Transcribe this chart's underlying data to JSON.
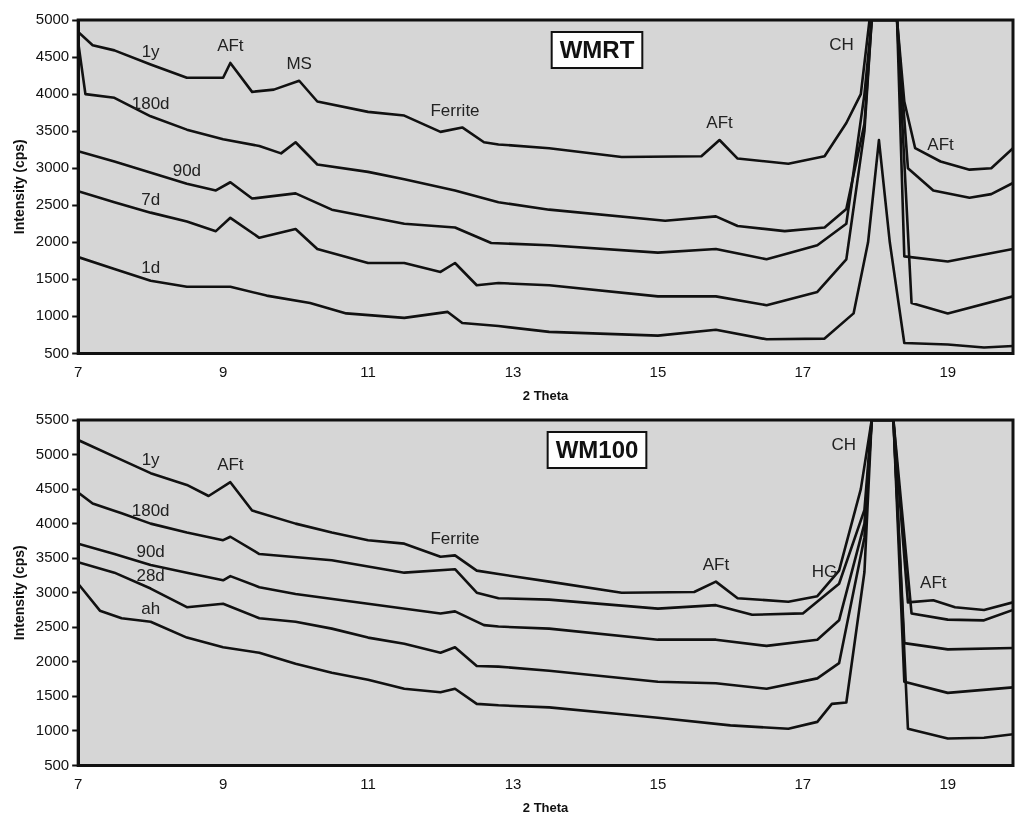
{
  "chart_data": [
    {
      "type": "line",
      "title": "WMRT",
      "xlabel": "2 Theta",
      "ylabel": "Intensity (cps)",
      "xlim": [
        7,
        19.9
      ],
      "xticks": [
        7,
        9,
        11,
        13,
        15,
        17,
        19
      ],
      "ylim": [
        500,
        5000
      ],
      "yticks": [
        500,
        1000,
        1500,
        2000,
        2500,
        3000,
        3500,
        4000,
        4500,
        5000
      ],
      "series": [
        {
          "name": "1y",
          "color": "#111111",
          "x": [
            7,
            7.2,
            7.5,
            8,
            8.5,
            9,
            9.1,
            9.4,
            9.7,
            10.05,
            10.3,
            11,
            11.5,
            12,
            12.3,
            12.6,
            12.8,
            13.5,
            14.5,
            15.6,
            15.85,
            16.1,
            16.8,
            17.3,
            17.6,
            17.8,
            17.92,
            18.3,
            18.4,
            18.55,
            18.9,
            19.3,
            19.6,
            19.9
          ],
          "values": [
            4840,
            4660,
            4590,
            4400,
            4220,
            4220,
            4420,
            4030,
            4060,
            4180,
            3900,
            3760,
            3710,
            3490,
            3550,
            3350,
            3320,
            3270,
            3150,
            3160,
            3380,
            3130,
            3060,
            3160,
            3610,
            4000,
            5000,
            5000,
            3900,
            3270,
            3090,
            2980,
            3000,
            3270
          ]
        },
        {
          "name": "180d",
          "color": "#111111",
          "x": [
            7,
            7.1,
            7.5,
            8,
            8.5,
            9,
            9.5,
            9.8,
            10,
            10.3,
            11,
            11.5,
            12.2,
            12.8,
            13.5,
            15.1,
            15.8,
            16.1,
            16.75,
            17.3,
            17.6,
            17.85,
            17.95,
            18.3,
            18.45,
            18.8,
            19.3,
            19.6,
            19.9
          ],
          "values": [
            4700,
            4000,
            3950,
            3700,
            3520,
            3390,
            3300,
            3200,
            3350,
            3050,
            2950,
            2850,
            2700,
            2540,
            2440,
            2290,
            2350,
            2220,
            2150,
            2200,
            2450,
            3600,
            5000,
            5000,
            3000,
            2700,
            2600,
            2650,
            2800
          ]
        },
        {
          "name": "90d",
          "color": "#111111",
          "x": [
            7,
            7.5,
            8.5,
            8.9,
            9.1,
            9.4,
            10,
            10.5,
            11.5,
            12.2,
            12.7,
            13.5,
            15,
            15.8,
            16.5,
            17.2,
            17.6,
            17.85,
            17.95,
            18.3,
            18.4,
            19,
            19.9
          ],
          "values": [
            3230,
            3090,
            2790,
            2700,
            2810,
            2590,
            2660,
            2440,
            2250,
            2200,
            1990,
            1960,
            1860,
            1910,
            1770,
            1960,
            2250,
            4000,
            5000,
            5000,
            1810,
            1740,
            1910
          ]
        },
        {
          "name": "7d",
          "color": "#111111",
          "x": [
            7,
            7.5,
            8,
            8.5,
            8.9,
            9.1,
            9.5,
            10,
            10.3,
            11,
            11.5,
            12,
            12.2,
            12.5,
            12.8,
            13.5,
            15,
            15.8,
            16.5,
            17.2,
            17.6,
            17.85,
            17.95,
            18.3,
            18.5,
            19,
            19.9
          ],
          "values": [
            2690,
            2540,
            2400,
            2280,
            2150,
            2330,
            2060,
            2180,
            1910,
            1720,
            1720,
            1600,
            1720,
            1420,
            1450,
            1420,
            1270,
            1270,
            1150,
            1330,
            1770,
            3500,
            5000,
            5000,
            1180,
            1040,
            1270
          ]
        },
        {
          "name": "1d",
          "color": "#111111",
          "x": [
            7,
            7.5,
            8,
            8.5,
            9.1,
            9.6,
            10.2,
            10.7,
            11.5,
            12.1,
            12.3,
            12.8,
            13.5,
            15,
            15.8,
            16.5,
            17.3,
            17.7,
            17.9,
            18.05,
            18.2,
            18.4,
            19,
            19.5,
            19.9
          ],
          "values": [
            1800,
            1640,
            1480,
            1400,
            1400,
            1280,
            1180,
            1040,
            980,
            1060,
            910,
            870,
            790,
            740,
            820,
            690,
            700,
            1040,
            2000,
            3380,
            2000,
            640,
            620,
            580,
            600
          ]
        }
      ],
      "annotations": [
        {
          "text": "AFt",
          "x": 9.1,
          "y": 4420
        },
        {
          "text": "MS",
          "x": 10.05,
          "y": 4180
        },
        {
          "text": "Ferrite",
          "x": 12.2,
          "y": 3550
        },
        {
          "text": "AFt",
          "x": 15.85,
          "y": 3380
        },
        {
          "text": "CH",
          "x": 17.92,
          "y": 5000
        },
        {
          "text": "AFt",
          "x": 18.9,
          "y": 3090
        }
      ]
    },
    {
      "type": "line",
      "title": "WM100",
      "xlabel": "2 Theta",
      "ylabel": "Intensity (cps)",
      "xlim": [
        7,
        19.9
      ],
      "xticks": [
        7,
        9,
        11,
        13,
        15,
        17,
        19
      ],
      "ylim": [
        500,
        5500
      ],
      "yticks": [
        500,
        1000,
        1500,
        2000,
        2500,
        3000,
        3500,
        4000,
        4500,
        5000,
        5500
      ],
      "series": [
        {
          "name": "1y",
          "color": "#111111",
          "x": [
            7,
            7.5,
            8,
            8.5,
            8.8,
            9.1,
            9.4,
            10,
            10.5,
            11,
            11.5,
            12,
            12.2,
            12.5,
            12.8,
            13.5,
            14.5,
            15.5,
            15.8,
            16.1,
            16.8,
            17.2,
            17.5,
            17.8,
            17.95,
            18.25,
            18.45,
            18.8,
            19.1,
            19.5,
            19.9
          ],
          "values": [
            5210,
            4970,
            4730,
            4560,
            4400,
            4600,
            4190,
            4000,
            3870,
            3760,
            3710,
            3520,
            3540,
            3320,
            3270,
            3160,
            3000,
            3010,
            3160,
            2920,
            2870,
            2950,
            3320,
            4500,
            5500,
            5500,
            2860,
            2890,
            2790,
            2750,
            2860
          ]
        },
        {
          "name": "180d",
          "color": "#111111",
          "x": [
            7,
            7.2,
            7.6,
            8,
            8.5,
            9,
            9.1,
            9.5,
            10.5,
            11.5,
            12.2,
            12.5,
            12.8,
            13.5,
            15,
            15.8,
            16.3,
            17,
            17.5,
            17.85,
            17.95,
            18.25,
            18.5,
            19,
            19.5,
            19.9
          ],
          "values": [
            4450,
            4290,
            4150,
            4000,
            3870,
            3760,
            3810,
            3560,
            3470,
            3290,
            3340,
            3000,
            2920,
            2900,
            2770,
            2820,
            2680,
            2700,
            3130,
            4200,
            5500,
            5500,
            2700,
            2610,
            2600,
            2750
          ]
        },
        {
          "name": "90d",
          "color": "#111111",
          "x": [
            7,
            7.5,
            8,
            8.5,
            9,
            9.1,
            9.5,
            10,
            11,
            12,
            12.2,
            12.6,
            12.8,
            13.5,
            15,
            15.8,
            16.5,
            17.2,
            17.5,
            17.85,
            17.95,
            18.25,
            18.4,
            19,
            19.9
          ],
          "values": [
            3710,
            3560,
            3400,
            3290,
            3180,
            3240,
            3080,
            2980,
            2840,
            2700,
            2730,
            2530,
            2510,
            2480,
            2320,
            2320,
            2230,
            2320,
            2600,
            4000,
            5500,
            5500,
            2270,
            2180,
            2200
          ]
        },
        {
          "name": "28d",
          "color": "#111111",
          "x": [
            7,
            7.5,
            8,
            8.5,
            9,
            9.5,
            10,
            10.5,
            11,
            11.5,
            12,
            12.2,
            12.5,
            12.8,
            13.5,
            15,
            15.8,
            16.5,
            17.2,
            17.5,
            17.85,
            17.95,
            18.25,
            18.4,
            19,
            19.9
          ],
          "values": [
            3440,
            3290,
            3060,
            2790,
            2840,
            2630,
            2580,
            2480,
            2350,
            2260,
            2130,
            2210,
            1940,
            1930,
            1870,
            1710,
            1690,
            1610,
            1760,
            1980,
            3800,
            5500,
            5500,
            1710,
            1550,
            1630
          ]
        },
        {
          "name": "ah",
          "color": "#111111",
          "x": [
            7,
            7.3,
            7.6,
            8,
            8.5,
            9,
            9.5,
            10,
            10.5,
            11,
            11.5,
            12,
            12.2,
            12.5,
            12.8,
            13.5,
            14.5,
            15,
            16,
            16.8,
            17.2,
            17.4,
            17.6,
            17.85,
            17.95,
            18.25,
            18.45,
            19,
            19.5,
            19.9
          ],
          "values": [
            3130,
            2740,
            2630,
            2580,
            2350,
            2210,
            2130,
            1970,
            1840,
            1740,
            1610,
            1560,
            1610,
            1390,
            1370,
            1340,
            1240,
            1190,
            1080,
            1030,
            1130,
            1390,
            1410,
            3300,
            5500,
            5500,
            1030,
            890,
            900,
            950
          ]
        }
      ],
      "annotations": [
        {
          "text": "AFt",
          "x": 9.1,
          "y": 4600
        },
        {
          "text": "Ferrite",
          "x": 12.2,
          "y": 3540
        },
        {
          "text": "AFt",
          "x": 15.8,
          "y": 3160
        },
        {
          "text": "HG",
          "x": 17.3,
          "y": 3050
        },
        {
          "text": "CH",
          "x": 17.95,
          "y": 5500
        },
        {
          "text": "AFt",
          "x": 18.8,
          "y": 2890
        }
      ]
    }
  ]
}
